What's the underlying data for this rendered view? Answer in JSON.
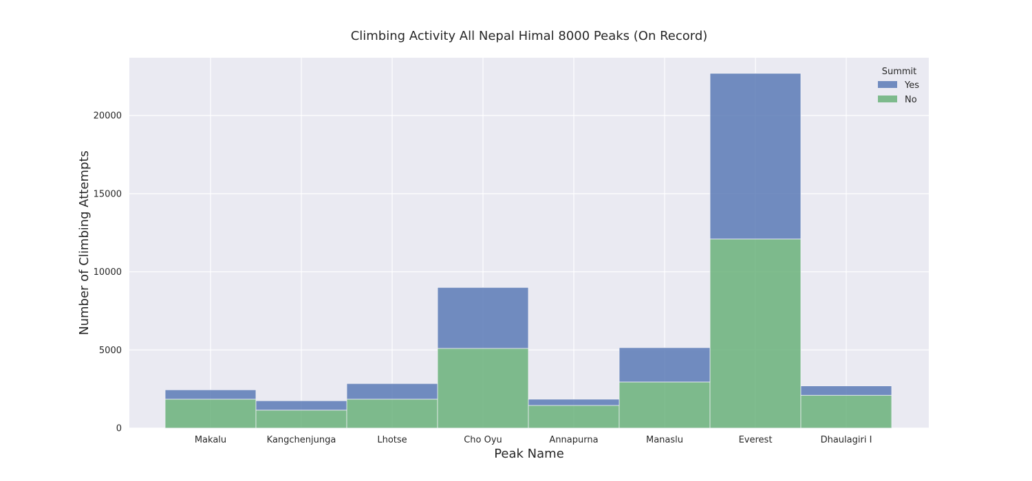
{
  "chart_data": {
    "type": "bar",
    "stacked": true,
    "title": "Climbing Activity All Nepal Himal 8000 Peaks (On Record)",
    "xlabel": "Peak Name",
    "ylabel": "Number of Climbing Attempts",
    "categories": [
      "Makalu",
      "Kangchenjunga",
      "Lhotse",
      "Cho Oyu",
      "Annapurna",
      "Manaslu",
      "Everest",
      "Dhaulagiri I"
    ],
    "series": [
      {
        "name": "No",
        "color": "#6ab27a",
        "values": [
          1850,
          1150,
          1850,
          5100,
          1450,
          2950,
          12100,
          2100
        ]
      },
      {
        "name": "Yes",
        "color": "#5a7ab6",
        "values": [
          600,
          600,
          1000,
          3900,
          400,
          2200,
          10600,
          600
        ]
      }
    ],
    "ylim": [
      0,
      23700
    ],
    "yticks": [
      0,
      5000,
      10000,
      15000,
      20000
    ],
    "legend": {
      "title": "Summit",
      "position": "top-right",
      "order": [
        "Yes",
        "No"
      ]
    },
    "grid": true,
    "background": "#eaeaf2",
    "grid_color": "#ffffff"
  }
}
